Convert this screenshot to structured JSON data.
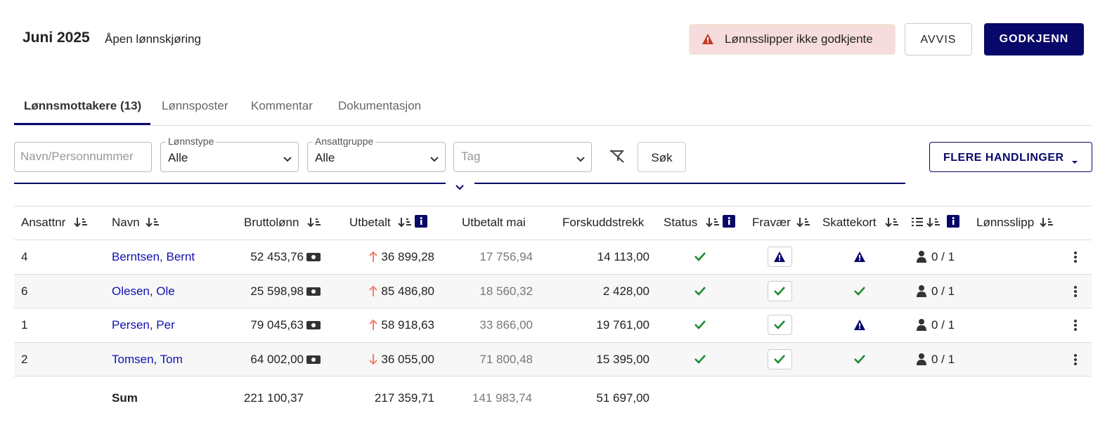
{
  "header": {
    "title": "Juni 2025",
    "subtitle": "Åpen lønnskjøring",
    "alert": "Lønnsslipper ikke godkjente",
    "reject": "AVVIS",
    "approve": "GODKJENN"
  },
  "tabs": [
    "Lønnsmottakere (13)",
    "Lønnsposter",
    "Kommentar",
    "Dokumentasjon"
  ],
  "filters": {
    "search_placeholder": "Navn/Personnummer",
    "pay_type_label": "Lønnstype",
    "pay_type": "Alle",
    "group_label": "Ansattgruppe",
    "group": "Alle",
    "tag_placeholder": "Tag",
    "search_button": "Søk",
    "more_actions": "FLERE HANDLINGER"
  },
  "table": {
    "columns": [
      "Ansattnr",
      "Navn",
      "Bruttolønn",
      "Utbetalt",
      "Utbetalt mai",
      "Forskuddstrekk",
      "Status",
      "Fravær",
      "Skattekort",
      "Lønnsslipp"
    ],
    "rows": [
      [
        "4",
        "Berntsen, Bernt",
        "52 453,76",
        "36 899,28",
        "17 756,94",
        "14 113,00",
        "0 / 1"
      ],
      [
        "6",
        "Olesen, Ole",
        "25 598,98",
        "85 486,80",
        "18 560,32",
        "2 428,00",
        "0 / 1"
      ],
      [
        "1",
        "Persen, Per",
        "79 045,63",
        "58 918,63",
        "33 866,00",
        "19 761,00",
        "0 / 1"
      ],
      [
        "2",
        "Tomsen, Tom",
        "64 002,00",
        "36 055,00",
        "71 800,48",
        "15 395,00",
        "0 / 1"
      ]
    ],
    "sum": {
      "label": "Sum",
      "values": [
        "221 100,37",
        "217 359,71",
        "141 983,74",
        "51 697,00"
      ]
    }
  }
}
